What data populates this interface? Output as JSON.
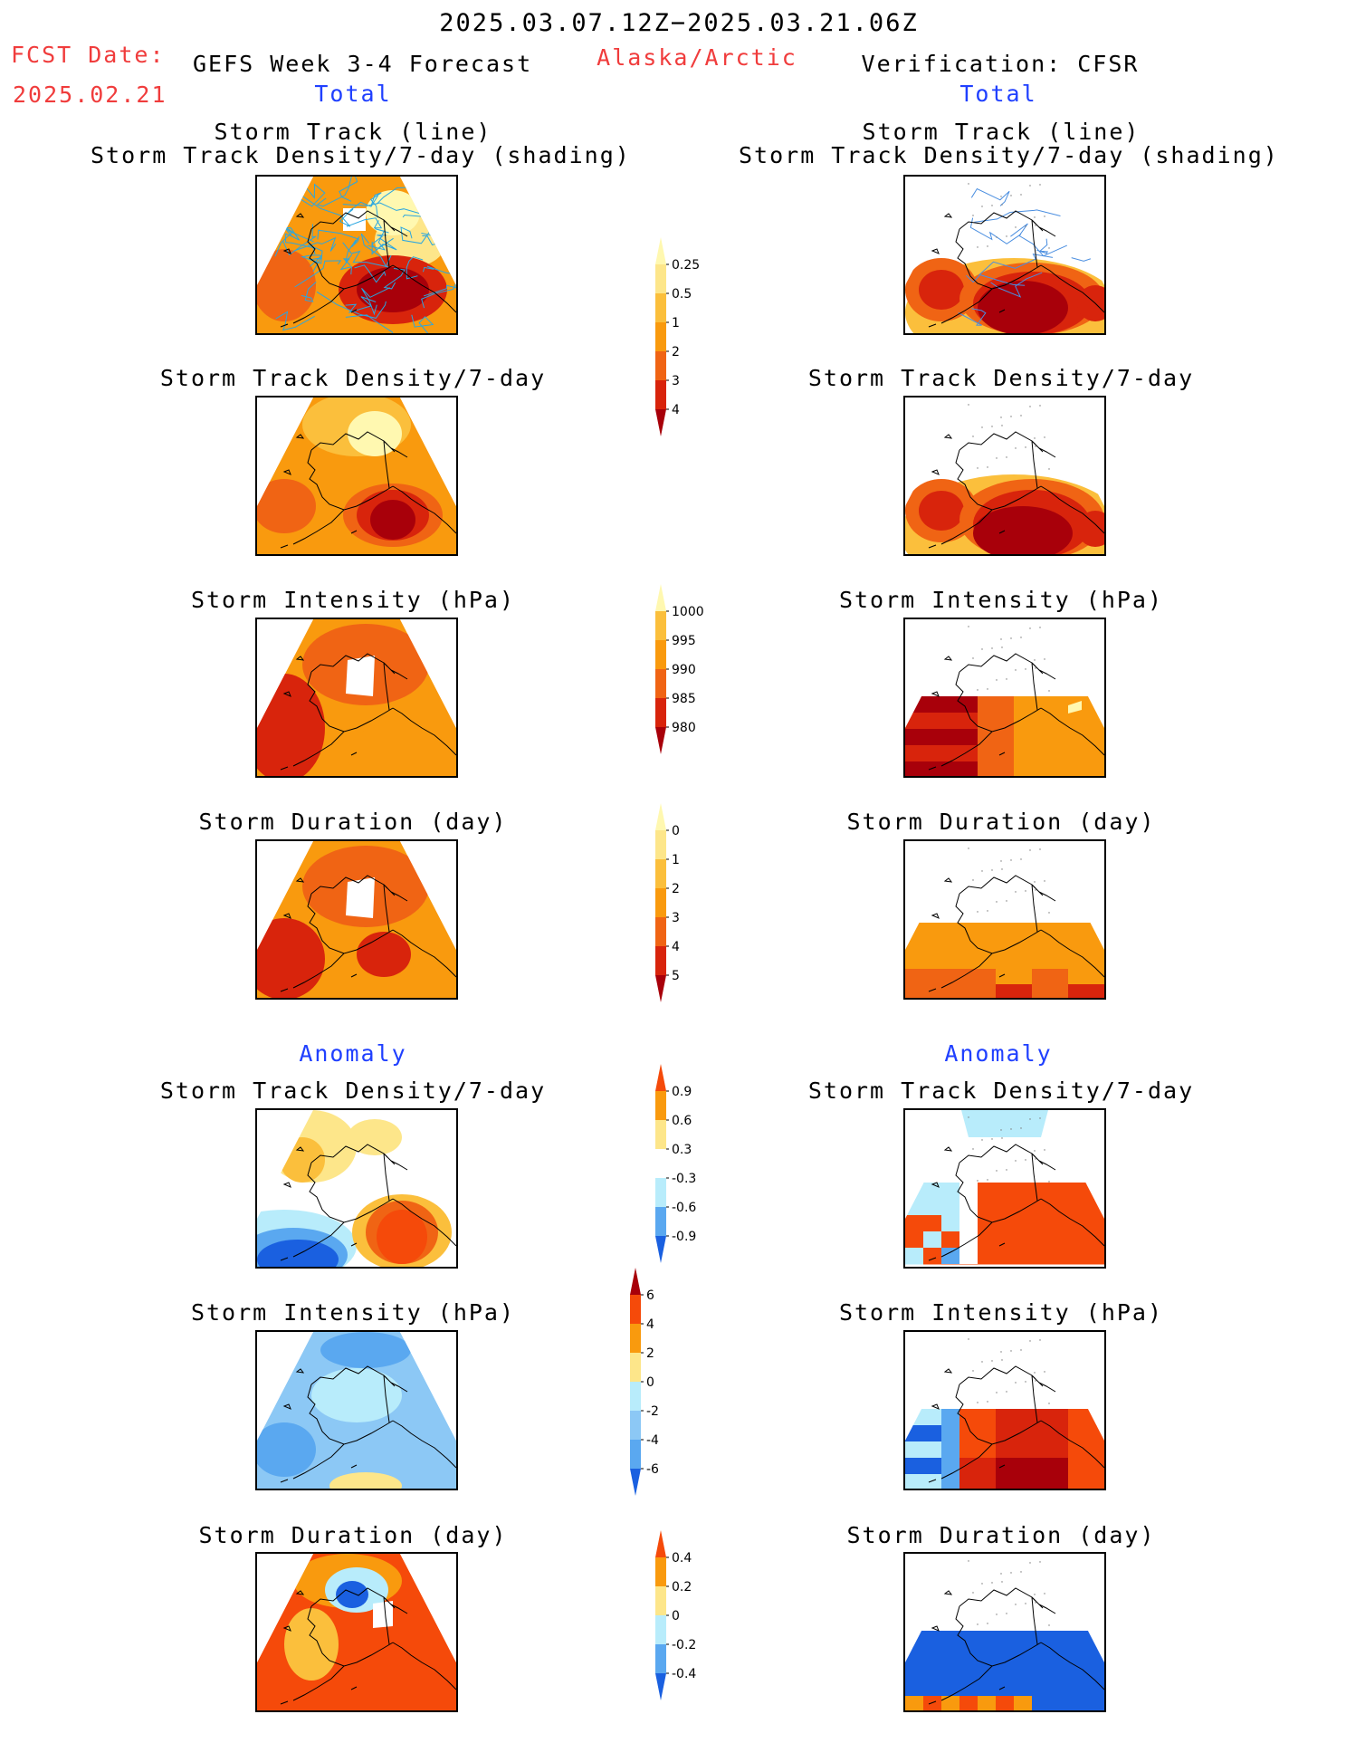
{
  "header": {
    "period": "2025.03.07.12Z−2025.03.21.06Z",
    "fcst_label": "FCST Date:",
    "fcst_date": "2025.02.21",
    "model_title": "GEFS Week 3-4 Forecast",
    "region": "Alaska/Arctic",
    "verification_title": "Verification: CFSR"
  },
  "sections": {
    "total_left": "Total",
    "total_right": "Total",
    "anomaly_left": "Anomaly",
    "anomaly_right": "Anomaly"
  },
  "panel_titles": {
    "track_line": "Storm Track (line)",
    "track_shading": "Storm Track Density/7-day (shading)",
    "density": "Storm Track Density/7-day",
    "intensity": "Storm Intensity (hPa)",
    "duration": "Storm Duration (day)"
  },
  "colorbars": {
    "density_total": {
      "labels": [
        "0.25",
        "0.5",
        "1",
        "2",
        "3",
        "4"
      ],
      "colors": [
        "#fff8b0",
        "#fde68a",
        "#fbbf3c",
        "#f99a0e",
        "#f06414",
        "#d8240c",
        "#a8000a"
      ]
    },
    "intensity_total": {
      "labels": [
        "1000",
        "995",
        "990",
        "985",
        "980"
      ],
      "colors": [
        "#fff8b0",
        "#fbbf3c",
        "#f99a0e",
        "#f06414",
        "#d8240c",
        "#a8000a"
      ]
    },
    "duration_total": {
      "labels": [
        "0",
        "1",
        "2",
        "3",
        "4",
        "5"
      ],
      "colors": [
        "#fff8b0",
        "#fde68a",
        "#fbbf3c",
        "#f99a0e",
        "#f06414",
        "#d8240c",
        "#a8000a"
      ]
    },
    "density_anom": {
      "labels": [
        "0.9",
        "0.6",
        "0.3",
        "-0.3",
        "-0.6",
        "-0.9"
      ],
      "colors": [
        "#f54a0a",
        "#f99a0e",
        "#fde68a",
        "#ffffff",
        "#b8ecfb",
        "#5aa8f0",
        "#1a60e0"
      ]
    },
    "intensity_anom": {
      "labels": [
        "6",
        "4",
        "2",
        "0",
        "-2",
        "-4",
        "-6"
      ],
      "colors": [
        "#a8000a",
        "#f54a0a",
        "#f99a0e",
        "#fde68a",
        "#b8ecfb",
        "#8cc8f5",
        "#5aa8f0",
        "#1a60e0"
      ]
    },
    "duration_anom": {
      "labels": [
        "0.4",
        "0.2",
        "0",
        "-0.2",
        "-0.4"
      ],
      "colors": [
        "#f54a0a",
        "#f99a0e",
        "#fde68a",
        "#b8ecfb",
        "#5aa8f0",
        "#1a60e0"
      ]
    }
  },
  "chart_data": [
    {
      "type": "heatmap",
      "title": "Storm Track (line) / Storm Track Density/7-day (shading)",
      "column": "GEFS Week 3-4 Forecast",
      "section": "Total",
      "dominant_levels": [
        "1",
        "2",
        "3",
        "4"
      ]
    },
    {
      "type": "heatmap",
      "title": "Storm Track (line) / Storm Track Density/7-day (shading)",
      "column": "Verification: CFSR",
      "section": "Total",
      "dominant_levels": [
        "1",
        "2",
        "3",
        "4"
      ]
    },
    {
      "type": "heatmap",
      "title": "Storm Track Density/7-day",
      "column": "GEFS Week 3-4 Forecast",
      "section": "Total",
      "dominant_levels": [
        "1",
        "2",
        "3",
        "4"
      ]
    },
    {
      "type": "heatmap",
      "title": "Storm Track Density/7-day",
      "column": "Verification: CFSR",
      "section": "Total",
      "dominant_levels": [
        "2",
        "3",
        "4"
      ]
    },
    {
      "type": "heatmap",
      "title": "Storm Intensity (hPa)",
      "column": "GEFS Week 3-4 Forecast",
      "section": "Total",
      "dominant_levels": [
        "990",
        "985",
        "980"
      ]
    },
    {
      "type": "heatmap",
      "title": "Storm Intensity (hPa)",
      "column": "Verification: CFSR",
      "section": "Total",
      "dominant_levels": [
        "995",
        "990",
        "985",
        "980"
      ]
    },
    {
      "type": "heatmap",
      "title": "Storm Duration (day)",
      "column": "GEFS Week 3-4 Forecast",
      "section": "Total",
      "dominant_levels": [
        "2",
        "3",
        "4"
      ]
    },
    {
      "type": "heatmap",
      "title": "Storm Duration (day)",
      "column": "Verification: CFSR",
      "section": "Total",
      "dominant_levels": [
        "2",
        "3",
        "4"
      ]
    },
    {
      "type": "heatmap",
      "title": "Storm Track Density/7-day",
      "column": "GEFS Week 3-4 Forecast",
      "section": "Anomaly",
      "dominant_levels": [
        "-0.9",
        "-0.6",
        "0.3",
        "0.6",
        "0.9"
      ]
    },
    {
      "type": "heatmap",
      "title": "Storm Track Density/7-day",
      "column": "Verification: CFSR",
      "section": "Anomaly",
      "dominant_levels": [
        "-0.6",
        "-0.3",
        "0.9"
      ]
    },
    {
      "type": "heatmap",
      "title": "Storm Intensity (hPa)",
      "column": "GEFS Week 3-4 Forecast",
      "section": "Anomaly",
      "dominant_levels": [
        "-4",
        "-2",
        "0",
        "2"
      ]
    },
    {
      "type": "heatmap",
      "title": "Storm Intensity (hPa)",
      "column": "Verification: CFSR",
      "section": "Anomaly",
      "dominant_levels": [
        "-6",
        "-2",
        "4",
        "6"
      ]
    },
    {
      "type": "heatmap",
      "title": "Storm Duration (day)",
      "column": "GEFS Week 3-4 Forecast",
      "section": "Anomaly",
      "dominant_levels": [
        "-0.4",
        "-0.2",
        "0.2",
        "0.4"
      ]
    },
    {
      "type": "heatmap",
      "title": "Storm Duration (day)",
      "column": "Verification: CFSR",
      "section": "Anomaly",
      "dominant_levels": [
        "-0.4",
        "0.4"
      ]
    }
  ]
}
